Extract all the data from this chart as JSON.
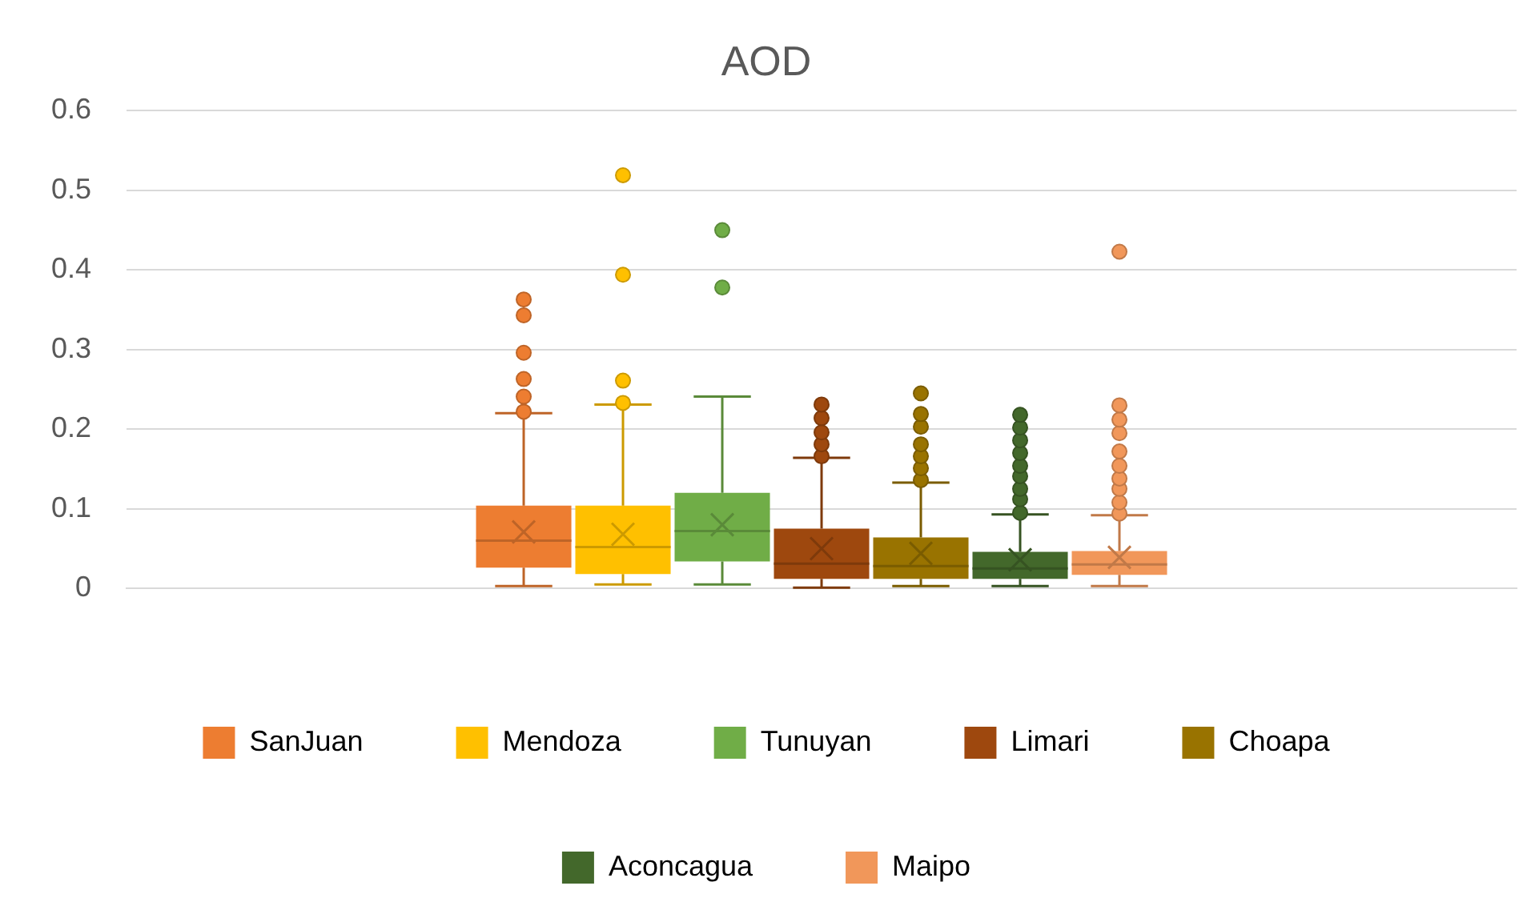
{
  "chart_data": {
    "type": "box",
    "title": "AOD",
    "categories": [
      null
    ],
    "ylim": [
      0,
      0.6
    ],
    "yticks": [
      0,
      0.1,
      0.2,
      0.3,
      0.4,
      0.5,
      0.6
    ],
    "grid": "y",
    "legend": "bottom",
    "marker": "circle",
    "series": [
      {
        "name": "SanJuan",
        "color": "#ed7d31",
        "boxes": [
          {
            "low": 0.003,
            "q1": 0.026,
            "median": 0.06,
            "q3": 0.104,
            "high": 0.22,
            "mean": 0.071,
            "outliers": [
              0.222,
              0.241,
              0.263,
              0.296,
              0.343,
              0.363
            ]
          }
        ]
      },
      {
        "name": "Mendoza",
        "color": "#ffc000",
        "boxes": [
          {
            "low": 0.005,
            "q1": 0.018,
            "median": 0.052,
            "q3": 0.104,
            "high": 0.231,
            "mean": 0.068,
            "outliers": [
              0.233,
              0.261,
              0.394,
              0.519
            ]
          }
        ]
      },
      {
        "name": "Tunuyan",
        "color": "#70ad47",
        "boxes": [
          {
            "low": 0.005,
            "q1": 0.034,
            "median": 0.072,
            "q3": 0.12,
            "high": 0.241,
            "mean": 0.08,
            "outliers": [
              0.378,
              0.45
            ]
          }
        ]
      },
      {
        "name": "Limari",
        "color": "#9e480e",
        "boxes": [
          {
            "low": 0.001,
            "q1": 0.012,
            "median": 0.031,
            "q3": 0.075,
            "high": 0.164,
            "mean": 0.05,
            "outliers": [
              0.166,
              0.181,
              0.196,
              0.214,
              0.231
            ]
          }
        ]
      },
      {
        "name": "Choapa",
        "color": "#997300",
        "boxes": [
          {
            "low": 0.003,
            "q1": 0.012,
            "median": 0.028,
            "q3": 0.064,
            "high": 0.133,
            "mean": 0.044,
            "outliers": [
              0.136,
              0.151,
              0.166,
              0.181,
              0.203,
              0.219,
              0.245
            ]
          }
        ]
      },
      {
        "name": "Aconcagua",
        "color": "#43682b",
        "boxes": [
          {
            "low": 0.003,
            "q1": 0.012,
            "median": 0.025,
            "q3": 0.046,
            "high": 0.093,
            "mean": 0.036,
            "outliers": [
              0.095,
              0.112,
              0.125,
              0.141,
              0.154,
              0.17,
              0.186,
              0.202,
              0.218
            ]
          }
        ]
      },
      {
        "name": "Maipo",
        "color": "#f1975a",
        "boxes": [
          {
            "low": 0.003,
            "q1": 0.017,
            "median": 0.03,
            "q3": 0.047,
            "high": 0.092,
            "mean": 0.039,
            "outliers": [
              0.094,
              0.108,
              0.125,
              0.138,
              0.154,
              0.172,
              0.195,
              0.212,
              0.23,
              0.423
            ]
          }
        ]
      }
    ]
  }
}
